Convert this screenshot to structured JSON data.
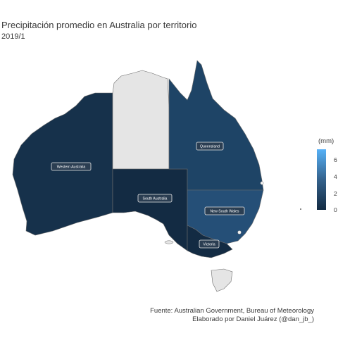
{
  "title": "Precipitación promedio en Australia por territorio",
  "subtitle": "2019/1",
  "caption": {
    "line1": "Fuente: Australian Government, Bureau of Meteorology",
    "line2": "Elaborado por Daniel Juárez (@dan_jb_)"
  },
  "legend": {
    "title": "(mm)",
    "ticks": [
      "6",
      "4",
      "2",
      "0"
    ],
    "low_color": "#132b43",
    "high_color": "#56b1f7"
  },
  "regions": [
    {
      "name": "Western Australia",
      "label": "Western Australia",
      "color": "#16314b"
    },
    {
      "name": "Northern Territory",
      "label": "",
      "color": "#e5e5e5"
    },
    {
      "name": "South Australia",
      "label": "South Australia",
      "color": "#132b43"
    },
    {
      "name": "Queensland",
      "label": "Queensland",
      "color": "#1e4466"
    },
    {
      "name": "New South Wales",
      "label": "New South Wales",
      "color": "#254f77"
    },
    {
      "name": "Victoria",
      "label": "Victoria",
      "color": "#132b43"
    },
    {
      "name": "Tasmania",
      "label": "",
      "color": "#e5e5e5"
    }
  ]
}
